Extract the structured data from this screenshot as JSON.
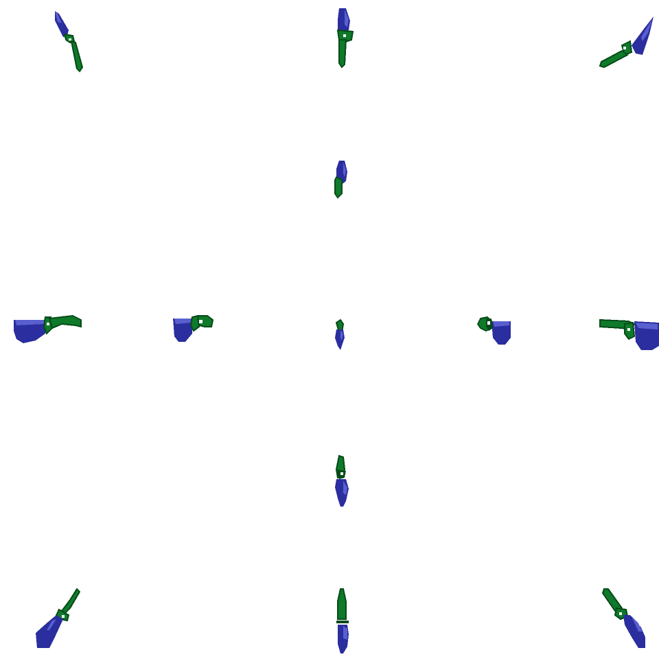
{
  "palette": {
    "blade": "#2b2e9e",
    "blade_light": "#5a5fd0",
    "hilt": "#0e7a2a",
    "hilt_dark": "#064a18",
    "highlight": "#ffffff",
    "background": "#ffffff"
  },
  "sprites": [
    {
      "name": "sword-sprite-northwest",
      "direction": "northwest"
    },
    {
      "name": "sword-sprite-north",
      "direction": "north"
    },
    {
      "name": "sword-sprite-northeast",
      "direction": "northeast"
    },
    {
      "name": "sword-sprite-north-near",
      "direction": "north"
    },
    {
      "name": "sword-sprite-west",
      "direction": "west"
    },
    {
      "name": "sword-sprite-west-near",
      "direction": "west"
    },
    {
      "name": "sword-sprite-center",
      "direction": "center"
    },
    {
      "name": "sword-sprite-east-near",
      "direction": "east"
    },
    {
      "name": "sword-sprite-east",
      "direction": "east"
    },
    {
      "name": "sword-sprite-south-near",
      "direction": "south"
    },
    {
      "name": "sword-sprite-southwest",
      "direction": "southwest"
    },
    {
      "name": "sword-sprite-south",
      "direction": "south"
    },
    {
      "name": "sword-sprite-southeast",
      "direction": "southeast"
    }
  ]
}
